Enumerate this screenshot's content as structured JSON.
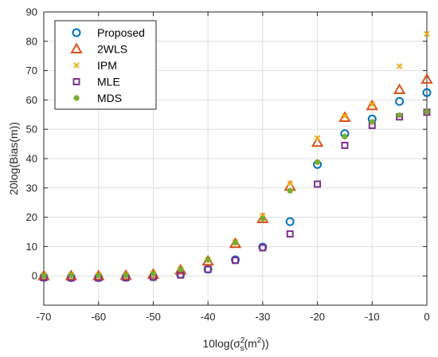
{
  "chart_data": {
    "type": "scatter",
    "xlabel": "10log(σ_s^2(m^2))",
    "xlabel_parts": {
      "prefix": "10log(",
      "sigma": "σ",
      "sub_s": "s",
      "sup_2": "2",
      "mid": "(m",
      "sup_2b": "2",
      "suffix": "))"
    },
    "ylabel": "20log(Bias(m))",
    "xlim": [
      -70,
      0
    ],
    "ylim": [
      -10,
      90
    ],
    "xticks": [
      -70,
      -60,
      -50,
      -40,
      -30,
      -20,
      -10,
      0
    ],
    "yticks": [
      0,
      10,
      20,
      30,
      40,
      50,
      60,
      70,
      80,
      90
    ],
    "grid": true,
    "legend_position": "top-left",
    "x": [
      -70,
      -65,
      -60,
      -55,
      -50,
      -45,
      -40,
      -35,
      -30,
      -25,
      -20,
      -15,
      -10,
      -5,
      0
    ],
    "series": [
      {
        "name": "Proposed",
        "marker": "circle",
        "color": "#0072BD",
        "values": [
          -0.5,
          -0.6,
          -0.6,
          -0.5,
          -0.3,
          0.5,
          2.3,
          5.5,
          9.8,
          18.5,
          38,
          48.5,
          53.5,
          59.5,
          62.5
        ]
      },
      {
        "name": "2WLS",
        "marker": "triangle",
        "color": "#D95319",
        "values": [
          0,
          0,
          0,
          0.1,
          0.5,
          2,
          5,
          11,
          19.5,
          30.5,
          45.5,
          54,
          58,
          63.5,
          67
        ]
      },
      {
        "name": "IPM",
        "marker": "x",
        "color": "#EDB120",
        "values": [
          0.2,
          0.3,
          0.3,
          0.4,
          0.8,
          2.3,
          5.5,
          11.5,
          20.5,
          31.5,
          47,
          54.5,
          58.5,
          71.5,
          82.5
        ]
      },
      {
        "name": "MLE",
        "marker": "square",
        "color": "#7E2F8E",
        "values": [
          -0.6,
          -0.7,
          -0.7,
          -0.6,
          -0.4,
          0.3,
          2.2,
          5.3,
          9.6,
          14.3,
          31.3,
          44.5,
          51.3,
          54.2,
          55.8
        ]
      },
      {
        "name": "MDS",
        "marker": "asterisk",
        "color": "#77AC30",
        "values": [
          0,
          0.1,
          0.1,
          0.2,
          0.6,
          2.2,
          5.5,
          11.3,
          19.5,
          29,
          38.8,
          47.5,
          52.5,
          54.8,
          56
        ]
      }
    ]
  }
}
